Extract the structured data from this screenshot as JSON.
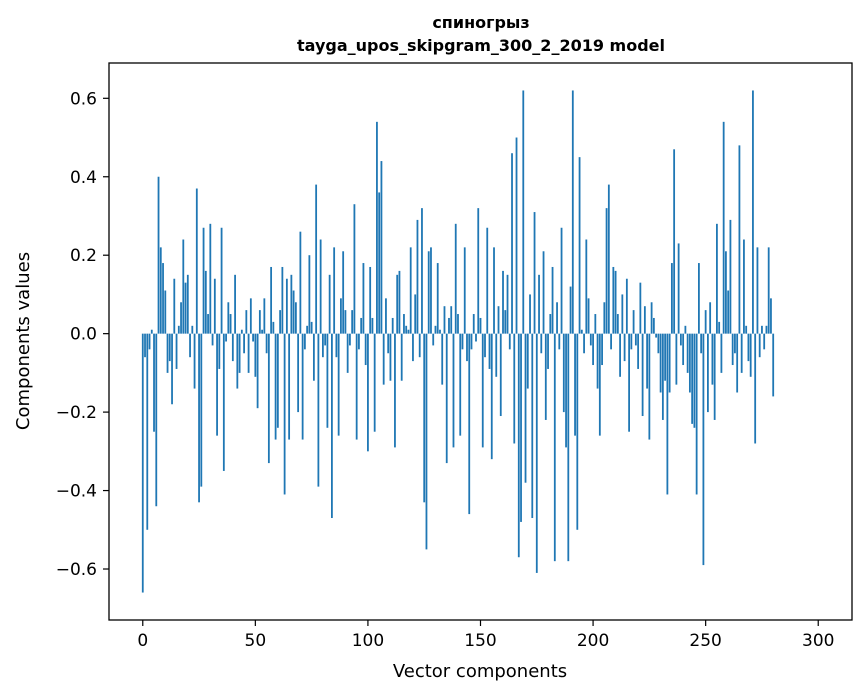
{
  "chart_data": {
    "type": "bar",
    "title": "спиногрыз",
    "subtitle": "tayga_upos_skipgram_300_2_2019 model",
    "xlabel": "Vector components",
    "ylabel": "Components values",
    "xlim": [
      -15,
      315
    ],
    "ylim": [
      -0.73,
      0.69
    ],
    "xticks": [
      0,
      50,
      100,
      150,
      200,
      250,
      300
    ],
    "xtick_labels": [
      "0",
      "50",
      "100",
      "150",
      "200",
      "250",
      "300"
    ],
    "yticks": [
      -0.6,
      -0.4,
      -0.2,
      0.0,
      0.2,
      0.4,
      0.6
    ],
    "ytick_labels": [
      "−0.6",
      "−0.4",
      "−0.2",
      "0.0",
      "0.2",
      "0.4",
      "0.6"
    ],
    "grid": false,
    "bar_color": "#1f77b4",
    "values": [
      -0.66,
      -0.06,
      -0.5,
      -0.04,
      0.01,
      -0.25,
      -0.44,
      0.4,
      0.22,
      0.18,
      0.11,
      -0.1,
      -0.07,
      -0.18,
      0.14,
      -0.09,
      0.02,
      0.08,
      0.24,
      0.13,
      0.15,
      -0.06,
      0.02,
      -0.14,
      0.37,
      -0.43,
      -0.39,
      0.27,
      0.16,
      0.05,
      0.28,
      -0.03,
      0.14,
      -0.26,
      -0.09,
      0.27,
      -0.35,
      -0.02,
      0.08,
      0.05,
      -0.07,
      0.15,
      -0.14,
      -0.1,
      0.01,
      -0.05,
      0.06,
      -0.1,
      0.09,
      -0.02,
      -0.11,
      -0.19,
      0.06,
      0.01,
      0.09,
      -0.05,
      -0.33,
      0.17,
      0.03,
      -0.27,
      -0.24,
      0.06,
      0.17,
      -0.41,
      0.14,
      -0.27,
      0.15,
      0.11,
      0.08,
      -0.2,
      0.26,
      -0.27,
      -0.04,
      0.02,
      0.2,
      0.03,
      -0.12,
      0.38,
      -0.39,
      0.24,
      -0.06,
      -0.03,
      -0.24,
      0.15,
      -0.47,
      0.22,
      -0.06,
      -0.26,
      0.09,
      0.21,
      0.06,
      -0.1,
      -0.03,
      0.06,
      0.33,
      -0.27,
      -0.04,
      0.04,
      0.18,
      -0.08,
      -0.3,
      0.17,
      0.04,
      -0.25,
      0.54,
      0.36,
      0.44,
      -0.13,
      0.09,
      -0.05,
      -0.12,
      0.04,
      -0.29,
      0.15,
      0.16,
      -0.12,
      0.05,
      0.02,
      0.01,
      0.22,
      -0.07,
      0.1,
      0.29,
      -0.06,
      0.32,
      -0.43,
      -0.55,
      0.21,
      0.22,
      -0.03,
      0.02,
      0.18,
      0.01,
      -0.13,
      0.07,
      -0.33,
      0.04,
      0.07,
      -0.29,
      0.28,
      0.05,
      -0.26,
      -0.04,
      0.22,
      -0.07,
      -0.46,
      -0.04,
      0.05,
      -0.02,
      0.32,
      0.04,
      -0.29,
      -0.06,
      0.27,
      -0.09,
      -0.32,
      0.22,
      -0.11,
      0.07,
      -0.21,
      0.16,
      0.06,
      0.15,
      -0.04,
      0.46,
      -0.28,
      0.5,
      -0.57,
      -0.48,
      0.62,
      -0.38,
      -0.14,
      0.1,
      -0.47,
      0.31,
      -0.61,
      0.15,
      -0.05,
      0.21,
      -0.22,
      -0.09,
      0.05,
      0.17,
      -0.58,
      0.08,
      -0.04,
      0.27,
      -0.2,
      -0.29,
      -0.58,
      0.12,
      0.62,
      -0.26,
      -0.5,
      0.45,
      0.01,
      -0.05,
      0.24,
      0.09,
      -0.03,
      -0.08,
      0.05,
      -0.14,
      -0.26,
      -0.08,
      0.08,
      0.32,
      0.38,
      -0.04,
      0.17,
      0.16,
      0.05,
      -0.11,
      0.1,
      -0.07,
      0.14,
      -0.25,
      -0.04,
      0.06,
      -0.03,
      -0.09,
      0.13,
      -0.21,
      0.07,
      -0.14,
      -0.27,
      0.08,
      0.04,
      -0.01,
      -0.05,
      -0.15,
      -0.22,
      -0.12,
      -0.41,
      -0.15,
      0.18,
      0.47,
      -0.13,
      0.23,
      -0.03,
      -0.08,
      0.02,
      -0.1,
      -0.15,
      -0.23,
      -0.24,
      -0.41,
      0.18,
      -0.05,
      -0.59,
      0.06,
      -0.2,
      0.08,
      -0.13,
      -0.22,
      0.28,
      0.03,
      -0.1,
      0.54,
      0.21,
      0.11,
      0.29,
      -0.08,
      -0.05,
      -0.15,
      0.48,
      -0.1,
      0.24,
      0.02,
      -0.07,
      -0.11,
      0.62,
      -0.28,
      0.22,
      -0.06,
      0.02,
      -0.04,
      0.02,
      0.22,
      0.09,
      -0.16
    ]
  }
}
